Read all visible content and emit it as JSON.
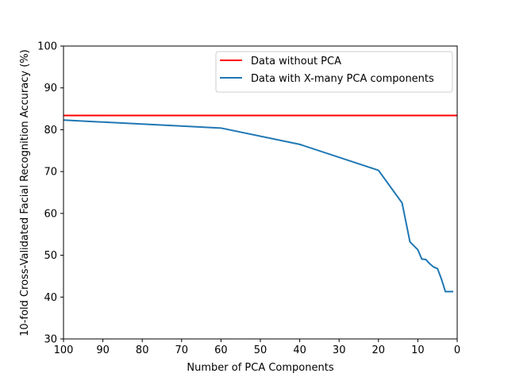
{
  "chart_data": {
    "type": "line",
    "title": "",
    "xlabel": "Number of PCA Components",
    "ylabel": "10-fold Cross-Validated Facial Recognition Accuracy (%)",
    "xlim": [
      100,
      0
    ],
    "ylim": [
      30,
      100
    ],
    "x_ticks": [
      100,
      90,
      80,
      70,
      60,
      50,
      40,
      30,
      20,
      10,
      0
    ],
    "y_ticks": [
      30,
      40,
      50,
      60,
      70,
      80,
      90,
      100
    ],
    "grid": false,
    "legend_position": "top-right",
    "series": [
      {
        "name": "Data without PCA",
        "color": "#ff0000",
        "kind": "hline",
        "y": 83.4
      },
      {
        "name": "Data with X-many PCA components",
        "color": "#1f77b4",
        "kind": "line",
        "x": [
          100,
          60,
          40,
          20,
          14,
          12,
          10,
          9,
          8,
          7,
          6,
          5,
          4,
          3,
          2,
          1
        ],
        "y": [
          82.3,
          80.4,
          76.5,
          70.3,
          62.5,
          53.2,
          51.3,
          49.1,
          49.0,
          48.0,
          47.2,
          46.8,
          44.3,
          41.3,
          41.3,
          41.3
        ]
      }
    ]
  }
}
